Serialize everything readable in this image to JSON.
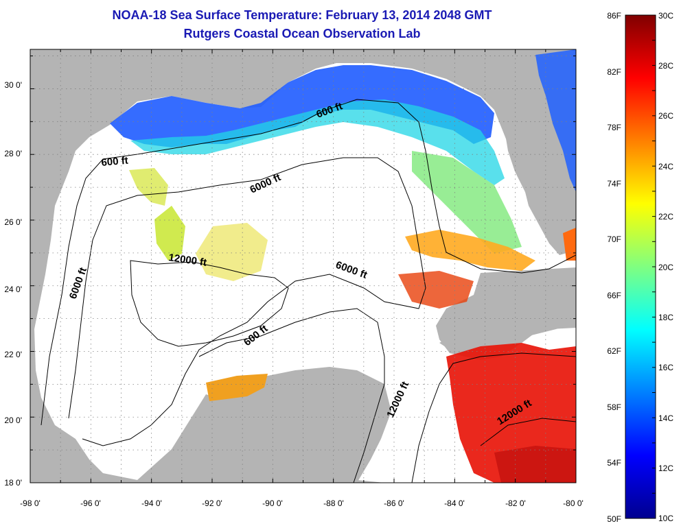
{
  "header": {
    "title": "NOAA-18 Sea Surface Temperature:  February 13, 2014 2048 GMT",
    "subtitle": "Rutgers Coastal Ocean Observation Lab"
  },
  "map": {
    "lon_ticks": [
      "-98 0'",
      "-96 0'",
      "-94 0'",
      "-92 0'",
      "-90 0'",
      "-88 0'",
      "-86 0'",
      "-84 0'",
      "-82 0'",
      "-80 0'"
    ],
    "lat_ticks": [
      "30 0'",
      "28 0'",
      "26 0'",
      "24 0'",
      "22 0'",
      "20 0'",
      "18 0'"
    ],
    "lon_range": [
      -98,
      -80
    ],
    "lat_range": [
      18,
      31.2
    ],
    "contour_labels": [
      "600 ft",
      "600 ft",
      "6000 ft",
      "6000 ft",
      "6000 ft",
      "12000 ft",
      "600 ft",
      "12000 ft",
      "12000 ft"
    ],
    "colors": {
      "land": "#b4b4b4",
      "ocean": "#ffffff",
      "contour": "#000000",
      "grid": "#808080"
    }
  },
  "colorbar": {
    "fahrenheit_labels": [
      "86F",
      "82F",
      "78F",
      "74F",
      "70F",
      "66F",
      "62F",
      "58F",
      "54F",
      "50F"
    ],
    "celsius_labels": [
      "30C",
      "28C",
      "26C",
      "24C",
      "22C",
      "20C",
      "18C",
      "16C",
      "14C",
      "12C",
      "10C"
    ],
    "range_c": [
      10,
      30
    ],
    "colormap": [
      "#00008f",
      "#0000ff",
      "#0080ff",
      "#00ffff",
      "#80ff80",
      "#ffff00",
      "#ff8000",
      "#ff0000",
      "#800000"
    ]
  }
}
